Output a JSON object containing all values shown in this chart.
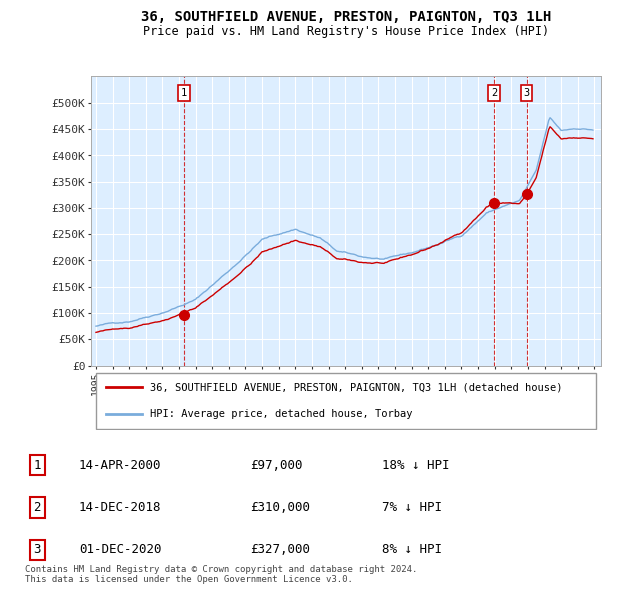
{
  "title": "36, SOUTHFIELD AVENUE, PRESTON, PAIGNTON, TQ3 1LH",
  "subtitle": "Price paid vs. HM Land Registry's House Price Index (HPI)",
  "legend_line1": "36, SOUTHFIELD AVENUE, PRESTON, PAIGNTON, TQ3 1LH (detached house)",
  "legend_line2": "HPI: Average price, detached house, Torbay",
  "footer1": "Contains HM Land Registry data © Crown copyright and database right 2024.",
  "footer2": "This data is licensed under the Open Government Licence v3.0.",
  "sales": [
    {
      "num": 1,
      "date": "14-APR-2000",
      "price": 97000,
      "pct": "18%",
      "dir": "↓"
    },
    {
      "num": 2,
      "date": "14-DEC-2018",
      "price": 310000,
      "pct": "7%",
      "dir": "↓"
    },
    {
      "num": 3,
      "date": "01-DEC-2020",
      "price": 327000,
      "pct": "8%",
      "dir": "↓"
    }
  ],
  "sale_years": [
    2000.29,
    2018.96,
    2020.92
  ],
  "sale_prices": [
    97000,
    310000,
    327000
  ],
  "red_color": "#cc0000",
  "blue_color": "#7aacdc",
  "chart_bg": "#ddeeff",
  "ylim": [
    0,
    550000
  ],
  "yticks": [
    0,
    50000,
    100000,
    150000,
    200000,
    250000,
    300000,
    350000,
    400000,
    450000,
    500000
  ],
  "ytick_labels": [
    "£0",
    "£50K",
    "£100K",
    "£150K",
    "£200K",
    "£250K",
    "£300K",
    "£350K",
    "£400K",
    "£450K",
    "£500K"
  ],
  "background_color": "#ffffff",
  "grid_color": "#ffffff"
}
